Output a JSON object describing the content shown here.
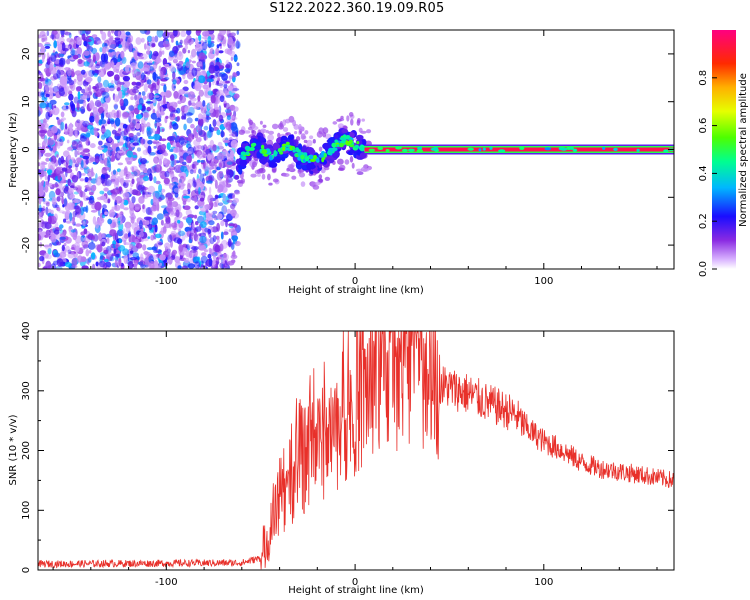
{
  "title": "S122.2022.360.19.09.R05",
  "chart_data": [
    {
      "type": "heatmap",
      "xlabel": "Height of straight line (km)",
      "ylabel": "Frequency (Hz)",
      "xlim": [
        -168,
        169
      ],
      "ylim": [
        -25,
        25
      ],
      "x_ticks": [
        -100,
        0,
        100
      ],
      "x_tick_labels": [
        "-100",
        "0",
        "100"
      ],
      "y_ticks": [
        -20,
        -10,
        0,
        10,
        20
      ],
      "y_tick_labels": [
        "-20",
        "-10",
        "0",
        "10",
        "20"
      ],
      "colorbar": {
        "label": "Normalized spectral amplitude",
        "range": [
          0,
          1
        ],
        "ticks": [
          0.0,
          0.2,
          0.4,
          0.6,
          0.8
        ],
        "tick_labels": [
          "0.0",
          "0.2",
          "0.4",
          "0.6",
          "0.8"
        ]
      },
      "regions": [
        {
          "description_value": "noise",
          "x_range": [
            -168,
            -62
          ],
          "amplitude": [
            0.05,
            0.35
          ]
        },
        {
          "description_value": "track",
          "x_range": [
            -62,
            5
          ],
          "amplitude": [
            0.2,
            0.55
          ]
        },
        {
          "description_value": "tone",
          "x_range": [
            5,
            169
          ],
          "frequency_hz": 0,
          "amplitude": 0.95
        }
      ],
      "track_points": [
        [
          -62,
          -3
        ],
        [
          -58,
          -1
        ],
        [
          -55,
          0.5
        ],
        [
          -50,
          0.5
        ],
        [
          -45,
          -1.5
        ],
        [
          -40,
          -0.5
        ],
        [
          -35,
          1
        ],
        [
          -30,
          -1
        ],
        [
          -25,
          -2
        ],
        [
          -20,
          -2.5
        ],
        [
          -15,
          -1
        ],
        [
          -10,
          1
        ],
        [
          -5,
          2
        ],
        [
          0,
          1
        ],
        [
          5,
          0.3
        ],
        [
          20,
          0
        ],
        [
          169,
          0
        ]
      ]
    },
    {
      "type": "line",
      "xlabel": "Height of straight line (km)",
      "ylabel": "SNR (10 * v/v)",
      "xlim": [
        -168,
        169
      ],
      "ylim": [
        0,
        400
      ],
      "x_ticks": [
        -100,
        0,
        100
      ],
      "x_tick_labels": [
        "-100",
        "0",
        "100"
      ],
      "y_ticks": [
        0,
        100,
        200,
        300,
        400
      ],
      "y_tick_labels": [
        "0",
        "100",
        "200",
        "300",
        "400"
      ],
      "color": "#e8302a",
      "envelope": [
        {
          "x": -168,
          "y": 10
        },
        {
          "x": -60,
          "y": 12
        },
        {
          "x": -50,
          "y": 20
        },
        {
          "x": -45,
          "y": 60
        },
        {
          "x": -40,
          "y": 120
        },
        {
          "x": -30,
          "y": 170
        },
        {
          "x": -20,
          "y": 200
        },
        {
          "x": -10,
          "y": 240
        },
        {
          "x": 0,
          "y": 280
        },
        {
          "x": 10,
          "y": 320
        },
        {
          "x": 20,
          "y": 340
        },
        {
          "x": 30,
          "y": 350
        },
        {
          "x": 40,
          "y": 340
        },
        {
          "x": 45,
          "y": 310
        },
        {
          "x": 60,
          "y": 295
        },
        {
          "x": 70,
          "y": 280
        },
        {
          "x": 85,
          "y": 260
        },
        {
          "x": 90,
          "y": 240
        },
        {
          "x": 100,
          "y": 215
        },
        {
          "x": 110,
          "y": 200
        },
        {
          "x": 120,
          "y": 180
        },
        {
          "x": 130,
          "y": 170
        },
        {
          "x": 150,
          "y": 160
        },
        {
          "x": 169,
          "y": 150
        }
      ]
    }
  ]
}
